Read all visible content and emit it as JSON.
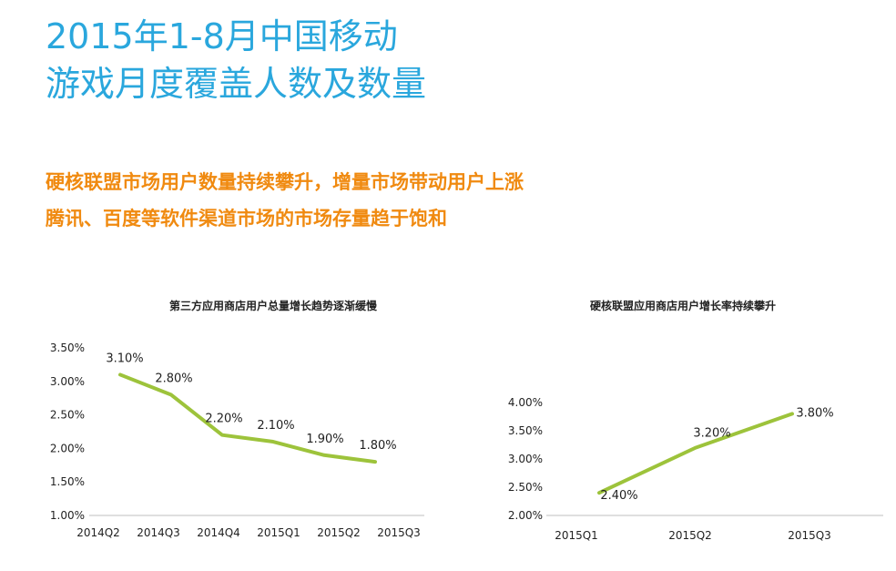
{
  "header": {
    "title_line1": "2015年1-8月中国移动",
    "title_line2": "游戏月度覆盖人数及数量"
  },
  "summary": {
    "line1": "硬核联盟市场用户数量持续攀升，增量市场带动用户上涨",
    "line2": "腾讯、百度等软件渠道市场的市场存量趋于饱和"
  },
  "colors": {
    "title": "#2aa7dd",
    "summary": "#f08a10",
    "series": "#9dc33b"
  },
  "chart_data": [
    {
      "type": "line",
      "title": "第三方应用商店用户总量增长趋势逐渐缓慢",
      "categories": [
        "2014Q2",
        "2014Q3",
        "2014Q4",
        "2015Q1",
        "2015Q2",
        "2015Q3"
      ],
      "values": [
        3.1,
        2.8,
        2.2,
        2.1,
        1.9,
        1.8
      ],
      "value_labels": [
        "3.10%",
        "2.80%",
        "2.20%",
        "2.10%",
        "1.90%",
        "1.80%"
      ],
      "yticks": [
        "3.50%",
        "3.00%",
        "2.50%",
        "2.00%",
        "1.50%",
        "1.00%"
      ],
      "ylim": [
        1.0,
        3.5
      ],
      "grid": false,
      "legend": "none"
    },
    {
      "type": "line",
      "title": "硬核联盟应用商店用户增长率持续攀升",
      "categories": [
        "2015Q1",
        "2015Q2",
        "2015Q3"
      ],
      "values": [
        2.4,
        3.2,
        3.8
      ],
      "value_labels": [
        "2.40%",
        "3.20%",
        "3.80%"
      ],
      "yticks": [
        "4.00%",
        "3.50%",
        "3.00%",
        "2.50%",
        "2.00%"
      ],
      "ylim": [
        2.0,
        4.0
      ],
      "grid": false,
      "legend": "none"
    }
  ]
}
